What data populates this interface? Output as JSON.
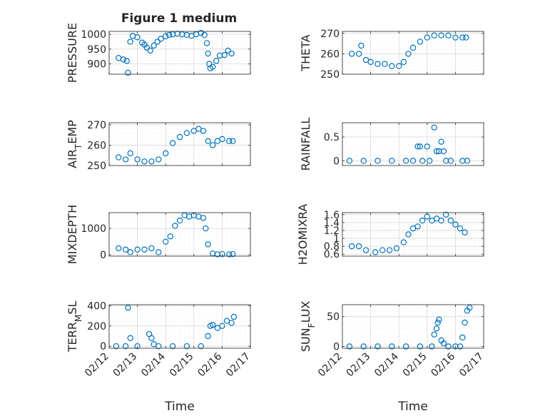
{
  "figure": {
    "title": "Figure 1 medium"
  },
  "colors": {
    "marker": "#0072BD",
    "axis": "#262626",
    "grid": "#d9d9d9",
    "minor_grid": "#ececec",
    "background": "#ffffff"
  },
  "chart_data": [
    {
      "type": "scatter",
      "ylabel": "PRESSURE",
      "xlabel": "",
      "title": "Figure 1 medium",
      "xlim": [
        "02/12",
        "02/17"
      ],
      "x_ticks": [
        "02/12",
        "02/13",
        "02/14",
        "02/15",
        "02/16",
        "02/17"
      ],
      "ylim": [
        865,
        1010
      ],
      "y_ticks": [
        900,
        950,
        1000
      ],
      "y_tick_labels": [
        "900",
        "950",
        "1000"
      ],
      "show_x_tick_labels": false,
      "grid": true,
      "marker": "circle",
      "x": [
        "02/12 08:00",
        "02/12 12:00",
        "02/12 15:00",
        "02/12 16:00",
        "02/12 18:00",
        "02/12 20:00",
        "02/13 00:00",
        "02/13 04:00",
        "02/13 06:00",
        "02/13 08:00",
        "02/13 11:00",
        "02/13 14:00",
        "02/13 17:00",
        "02/13 20:00",
        "02/14 00:00",
        "02/14 03:00",
        "02/14 06:00",
        "02/14 10:00",
        "02/14 14:00",
        "02/14 18:00",
        "02/14 22:00",
        "02/15 02:00",
        "02/15 06:00",
        "02/15 09:00",
        "02/15 11:00",
        "02/15 12:00",
        "02/15 13:00",
        "02/15 14:00",
        "02/15 16:00",
        "02/15 19:00",
        "02/15 22:00",
        "02/16 02:00",
        "02/16 05:00",
        "02/16 08:00"
      ],
      "y": [
        920,
        915,
        910,
        870,
        975,
        995,
        990,
        972,
        965,
        955,
        945,
        962,
        975,
        985,
        993,
        998,
        1000,
        1002,
        1000,
        998,
        995,
        1000,
        1005,
        998,
        970,
        935,
        900,
        885,
        890,
        910,
        928,
        930,
        945,
        935
      ]
    },
    {
      "type": "scatter",
      "ylabel": "THETA",
      "xlabel": "",
      "xlim": [
        "02/12",
        "02/17"
      ],
      "x_ticks": [
        "02/12",
        "02/13",
        "02/14",
        "02/15",
        "02/16",
        "02/17"
      ],
      "ylim": [
        250,
        271
      ],
      "y_ticks": [
        250,
        260,
        270
      ],
      "y_tick_labels": [
        "250",
        "260",
        "270"
      ],
      "show_x_tick_labels": false,
      "grid": true,
      "marker": "circle",
      "x": [
        "02/12 08:00",
        "02/12 14:00",
        "02/12 16:00",
        "02/12 20:00",
        "02/13 00:00",
        "02/13 06:00",
        "02/13 12:00",
        "02/13 18:00",
        "02/14 00:00",
        "02/14 04:00",
        "02/14 08:00",
        "02/14 12:00",
        "02/14 18:00",
        "02/15 00:00",
        "02/15 06:00",
        "02/15 12:00",
        "02/15 18:00",
        "02/16 00:00",
        "02/16 06:00",
        "02/16 09:00"
      ],
      "y": [
        260,
        260,
        264,
        257,
        256,
        255,
        255,
        254,
        254,
        256,
        260,
        263,
        266,
        268,
        269,
        269,
        269,
        268,
        268,
        268
      ]
    },
    {
      "type": "scatter",
      "ylabel": "AIR_TEMP",
      "xlabel": "",
      "xlim": [
        "02/12",
        "02/17"
      ],
      "x_ticks": [
        "02/12",
        "02/13",
        "02/14",
        "02/15",
        "02/16",
        "02/17"
      ],
      "ylim": [
        250,
        271
      ],
      "y_ticks": [
        250,
        260,
        270
      ],
      "y_tick_labels": [
        "250",
        "260",
        "270"
      ],
      "show_x_tick_labels": false,
      "grid": true,
      "marker": "circle",
      "x": [
        "02/12 08:00",
        "02/12 14:00",
        "02/12 18:00",
        "02/13 00:00",
        "02/13 06:00",
        "02/13 12:00",
        "02/13 18:00",
        "02/14 00:00",
        "02/14 06:00",
        "02/14 12:00",
        "02/14 18:00",
        "02/15 00:00",
        "02/15 04:00",
        "02/15 08:00",
        "02/15 12:00",
        "02/15 16:00",
        "02/15 20:00",
        "02/16 00:00",
        "02/16 06:00",
        "02/16 09:00"
      ],
      "y": [
        254,
        253,
        256,
        253,
        252,
        252,
        253,
        256,
        261,
        264,
        266,
        267,
        268,
        267,
        262,
        260,
        262,
        263,
        262,
        262
      ]
    },
    {
      "type": "scatter",
      "ylabel": "RAINFALL",
      "xlabel": "",
      "xlim": [
        "02/12",
        "02/17"
      ],
      "x_ticks": [
        "02/12",
        "02/13",
        "02/14",
        "02/15",
        "02/16",
        "02/17"
      ],
      "ylim": [
        -0.1,
        0.8
      ],
      "y_ticks": [
        0,
        0.5
      ],
      "y_tick_labels": [
        "0",
        "0.5"
      ],
      "show_x_tick_labels": false,
      "grid": true,
      "marker": "circle",
      "x": [
        "02/12 06:00",
        "02/12 18:00",
        "02/13 06:00",
        "02/13 18:00",
        "02/14 06:00",
        "02/14 12:00",
        "02/14 16:00",
        "02/14 18:00",
        "02/14 20:00",
        "02/15 00:00",
        "02/15 02:00",
        "02/15 06:00",
        "02/15 08:00",
        "02/15 10:00",
        "02/15 12:00",
        "02/15 14:00",
        "02/15 16:00",
        "02/15 20:00",
        "02/16 06:00",
        "02/16 10:00"
      ],
      "y": [
        0,
        0,
        0,
        0,
        0,
        0,
        0.3,
        0.3,
        0,
        0.3,
        0,
        0.7,
        0.2,
        0.2,
        0.4,
        0.2,
        0,
        0,
        0,
        0
      ]
    },
    {
      "type": "scatter",
      "ylabel": "MIXDEPTH",
      "xlabel": "",
      "xlim": [
        "02/12",
        "02/17"
      ],
      "x_ticks": [
        "02/12",
        "02/13",
        "02/14",
        "02/15",
        "02/16",
        "02/17"
      ],
      "ylim": [
        -50,
        1600
      ],
      "y_ticks": [
        0,
        1000
      ],
      "y_tick_labels": [
        "0",
        "1000"
      ],
      "show_x_tick_labels": false,
      "grid": true,
      "marker": "circle",
      "x": [
        "02/12 08:00",
        "02/12 14:00",
        "02/12 18:00",
        "02/13 00:00",
        "02/13 06:00",
        "02/13 12:00",
        "02/13 18:00",
        "02/14 00:00",
        "02/14 04:00",
        "02/14 08:00",
        "02/14 12:00",
        "02/14 16:00",
        "02/14 20:00",
        "02/15 00:00",
        "02/15 04:00",
        "02/15 08:00",
        "02/15 10:00",
        "02/15 12:00",
        "02/15 16:00",
        "02/15 20:00",
        "02/16 00:00",
        "02/16 06:00",
        "02/16 09:00"
      ],
      "y": [
        250,
        200,
        100,
        200,
        200,
        250,
        100,
        500,
        700,
        1100,
        1300,
        1500,
        1450,
        1500,
        1450,
        1400,
        1000,
        400,
        50,
        20,
        30,
        20,
        30
      ]
    },
    {
      "type": "scatter",
      "ylabel": "H2OMIXRA",
      "xlabel": "",
      "xlim": [
        "02/12",
        "02/17"
      ],
      "x_ticks": [
        "02/12",
        "02/13",
        "02/14",
        "02/15",
        "02/16",
        "02/17"
      ],
      "ylim": [
        0.55,
        1.65
      ],
      "y_ticks": [
        0.6,
        0.8,
        1,
        1.2,
        1.4,
        1.6
      ],
      "y_tick_labels": [
        "0.6",
        "0.8",
        "1",
        "1.2",
        "1.4",
        "1.6"
      ],
      "show_x_tick_labels": false,
      "grid": true,
      "marker": "circle",
      "x": [
        "02/12 08:00",
        "02/12 14:00",
        "02/12 20:00",
        "02/13 04:00",
        "02/13 10:00",
        "02/13 16:00",
        "02/13 22:00",
        "02/14 04:00",
        "02/14 08:00",
        "02/14 12:00",
        "02/14 16:00",
        "02/14 20:00",
        "02/15 00:00",
        "02/15 04:00",
        "02/15 08:00",
        "02/15 12:00",
        "02/15 16:00",
        "02/15 20:00",
        "02/16 00:00",
        "02/16 04:00",
        "02/16 08:00"
      ],
      "y": [
        0.8,
        0.8,
        0.7,
        0.65,
        0.7,
        0.7,
        0.75,
        0.9,
        1.1,
        1.25,
        1.3,
        1.45,
        1.55,
        1.45,
        1.5,
        1.45,
        1.6,
        1.45,
        1.35,
        1.25,
        1.15
      ]
    },
    {
      "type": "scatter",
      "ylabel": "TERR_MSL",
      "xlabel": "Time",
      "xlim": [
        "02/12",
        "02/17"
      ],
      "x_ticks": [
        "02/12",
        "02/13",
        "02/14",
        "02/15",
        "02/16",
        "02/17"
      ],
      "ylim": [
        -20,
        410
      ],
      "y_ticks": [
        0,
        200,
        400
      ],
      "y_tick_labels": [
        "0",
        "200",
        "400"
      ],
      "show_x_tick_labels": true,
      "grid": true,
      "marker": "circle",
      "x": [
        "02/12 06:00",
        "02/12 14:00",
        "02/12 16:00",
        "02/12 18:00",
        "02/13 00:00",
        "02/13 10:00",
        "02/13 12:00",
        "02/13 14:00",
        "02/13 18:00",
        "02/14 06:00",
        "02/14 18:00",
        "02/15 06:00",
        "02/15 12:00",
        "02/15 14:00",
        "02/15 16:00",
        "02/15 20:00",
        "02/16 00:00",
        "02/16 04:00",
        "02/16 08:00",
        "02/16 10:00"
      ],
      "y": [
        0,
        0,
        380,
        80,
        0,
        120,
        80,
        20,
        0,
        0,
        0,
        0,
        100,
        200,
        210,
        180,
        200,
        250,
        230,
        290
      ]
    },
    {
      "type": "scatter",
      "ylabel": "SUN_FLUX",
      "xlabel": "Time",
      "xlim": [
        "02/12",
        "02/17"
      ],
      "x_ticks": [
        "02/12",
        "02/13",
        "02/14",
        "02/15",
        "02/16",
        "02/17"
      ],
      "ylim": [
        -3,
        70
      ],
      "y_ticks": [
        0,
        50
      ],
      "y_tick_labels": [
        "0",
        "50"
      ],
      "show_x_tick_labels": true,
      "grid": true,
      "marker": "circle",
      "x": [
        "02/12 06:00",
        "02/12 18:00",
        "02/13 06:00",
        "02/13 18:00",
        "02/14 06:00",
        "02/14 18:00",
        "02/15 04:00",
        "02/15 06:00",
        "02/15 08:00",
        "02/15 09:00",
        "02/15 10:00",
        "02/15 12:00",
        "02/15 14:00",
        "02/15 18:00",
        "02/16 00:00",
        "02/16 04:00",
        "02/16 06:00",
        "02/16 08:00",
        "02/16 10:00",
        "02/16 12:00"
      ],
      "y": [
        0,
        0,
        0,
        0,
        0,
        0,
        0,
        20,
        30,
        40,
        45,
        10,
        5,
        0,
        0,
        0,
        15,
        40,
        60,
        65
      ]
    }
  ]
}
